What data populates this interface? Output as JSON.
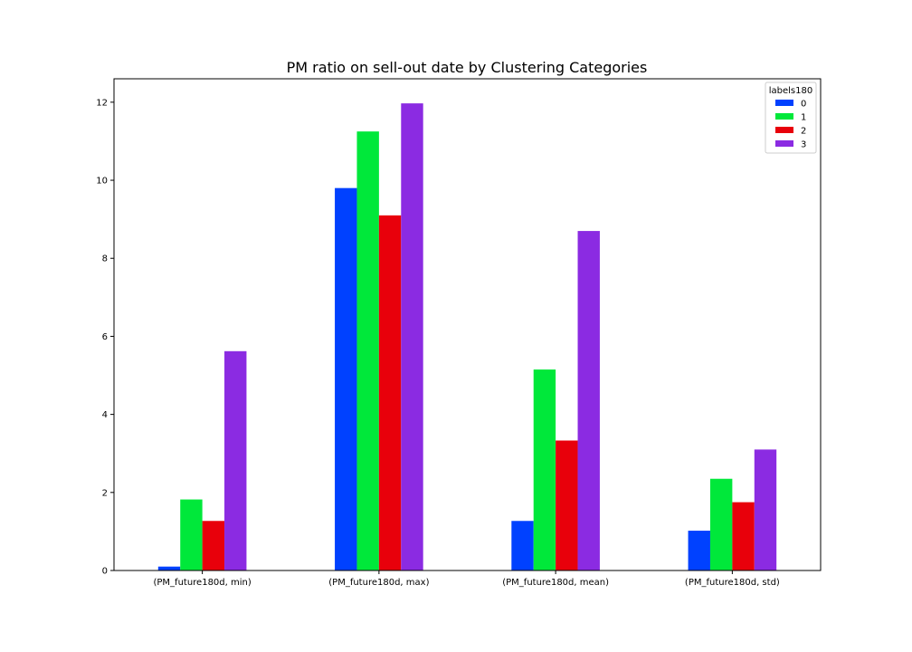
{
  "chart_data": {
    "type": "bar",
    "title": "PM ratio on sell-out date by Clustering Categories",
    "xlabel": "",
    "ylabel": "",
    "categories": [
      "(PM_future180d, min)",
      "(PM_future180d, max)",
      "(PM_future180d, mean)",
      "(PM_future180d, std)"
    ],
    "ylim": [
      0,
      12.6
    ],
    "yticks": [
      0,
      2,
      4,
      6,
      8,
      10,
      12
    ],
    "grid": false,
    "legend": {
      "title": "labels180",
      "placement": "top-right"
    },
    "series": [
      {
        "name": "0",
        "color": "#0041ff",
        "values": [
          0.1,
          9.8,
          1.27,
          1.02
        ]
      },
      {
        "name": "1",
        "color": "#00e83a",
        "values": [
          1.82,
          11.25,
          5.15,
          2.35
        ]
      },
      {
        "name": "2",
        "color": "#e8000b",
        "values": [
          1.27,
          9.1,
          3.33,
          1.75
        ]
      },
      {
        "name": "3",
        "color": "#8b2be2",
        "values": [
          5.62,
          11.97,
          8.7,
          3.1
        ]
      }
    ]
  }
}
